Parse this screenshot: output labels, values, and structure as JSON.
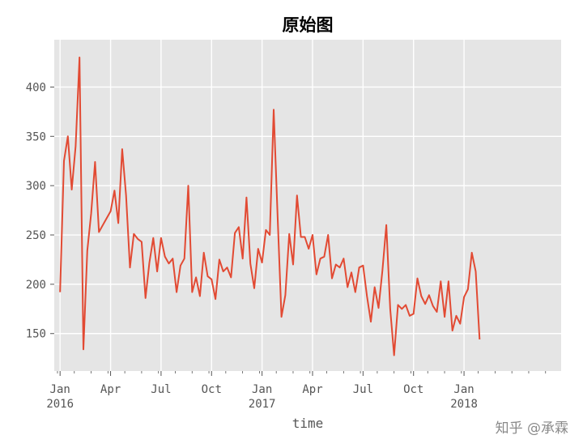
{
  "chart_data": {
    "type": "line",
    "title": "原始图",
    "xlabel": "time",
    "ylabel": "",
    "ylim": [
      112,
      448
    ],
    "xlim": [
      -1.5,
      129
    ],
    "grid": true,
    "y_ticks": [
      150,
      200,
      250,
      300,
      350,
      400
    ],
    "x_ticks": [
      {
        "x": 0,
        "label": "Jan",
        "sub": "2016"
      },
      {
        "x": 13,
        "label": "Apr",
        "sub": ""
      },
      {
        "x": 26,
        "label": "Jul",
        "sub": ""
      },
      {
        "x": 39,
        "label": "Oct",
        "sub": ""
      },
      {
        "x": 52,
        "label": "Jan",
        "sub": "2017"
      },
      {
        "x": 65,
        "label": "Apr",
        "sub": ""
      },
      {
        "x": 78,
        "label": "Jul",
        "sub": ""
      },
      {
        "x": 91,
        "label": "Oct",
        "sub": ""
      },
      {
        "x": 104,
        "label": "Jan",
        "sub": "2018"
      }
    ],
    "x_unit": "weeks since Jan 2016",
    "color": "#E24A33",
    "series": [
      {
        "name": "value",
        "values": [
          192,
          325,
          350,
          296,
          340,
          430,
          134,
          234,
          272,
          324,
          253,
          260,
          267,
          274,
          295,
          262,
          337,
          290,
          217,
          251,
          246,
          243,
          186,
          222,
          247,
          213,
          247,
          228,
          221,
          226,
          192,
          219,
          226,
          300,
          192,
          207,
          188,
          232,
          208,
          205,
          185,
          225,
          213,
          217,
          207,
          252,
          258,
          226,
          288,
          221,
          196,
          236,
          222,
          255,
          250,
          377,
          270,
          167,
          189,
          251,
          220,
          290,
          248,
          248,
          236,
          250,
          210,
          226,
          228,
          250,
          206,
          220,
          217,
          226,
          197,
          212,
          192,
          217,
          219,
          188,
          162,
          197,
          176,
          214,
          260,
          175,
          128,
          179,
          175,
          179,
          168,
          170,
          206,
          188,
          180,
          189,
          178,
          172,
          203,
          167,
          203,
          153,
          168,
          160,
          187,
          195,
          232,
          213,
          144
        ]
      }
    ]
  },
  "watermark": "知乎 @承霖"
}
